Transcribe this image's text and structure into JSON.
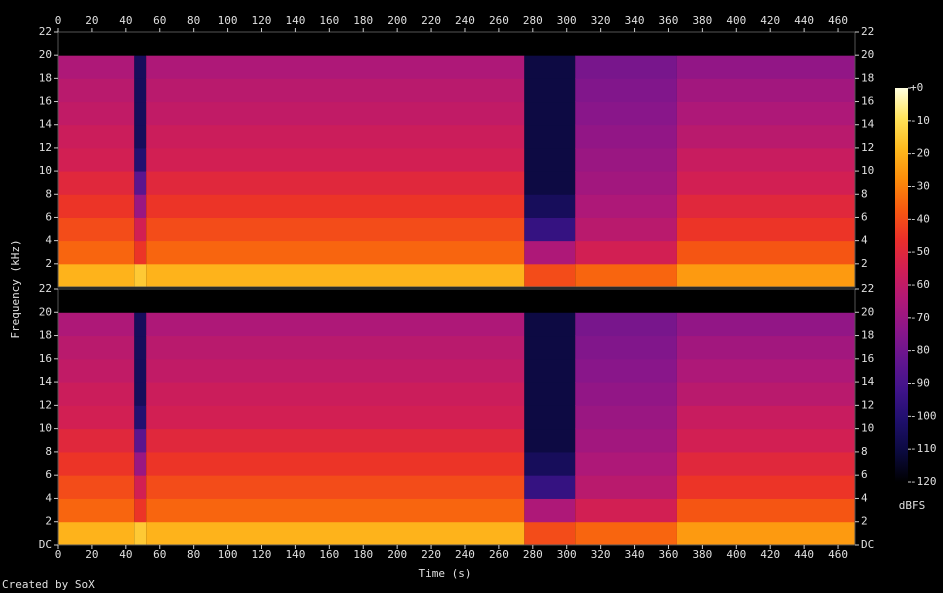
{
  "chart_data": {
    "type": "spectrogram",
    "xlabel": "Time (s)",
    "ylabel": "Frequency (kHz)",
    "footer": "Created by SoX",
    "xlim": [
      0,
      470
    ],
    "xticks": [
      0,
      20,
      40,
      60,
      80,
      100,
      120,
      140,
      160,
      180,
      200,
      220,
      240,
      260,
      280,
      300,
      320,
      340,
      360,
      380,
      400,
      420,
      440,
      460
    ],
    "time_edges": [
      0,
      45,
      52,
      275,
      305,
      365,
      470
    ],
    "freq_edges": [
      0,
      2,
      4,
      6,
      8,
      10,
      12,
      14,
      16,
      18,
      20,
      22
    ],
    "channels": [
      {
        "ylim": [
          0,
          22
        ],
        "yticks": [
          2,
          4,
          6,
          8,
          10,
          12,
          14,
          16,
          18,
          20,
          22
        ],
        "values": [
          [
            -20,
            -35,
            -40,
            -45,
            -50,
            -55,
            -57,
            -60,
            -62,
            -65,
            -120
          ],
          [
            -15,
            -45,
            -55,
            -70,
            -85,
            -100,
            -105,
            -105,
            -105,
            -105,
            -120
          ],
          [
            -20,
            -35,
            -40,
            -45,
            -50,
            -55,
            -57,
            -60,
            -62,
            -65,
            -120
          ],
          [
            -40,
            -65,
            -95,
            -105,
            -110,
            -110,
            -110,
            -110,
            -110,
            -110,
            -120
          ],
          [
            -35,
            -55,
            -62,
            -65,
            -68,
            -70,
            -72,
            -74,
            -76,
            -78,
            -120
          ],
          [
            -25,
            -38,
            -45,
            -50,
            -55,
            -58,
            -62,
            -65,
            -68,
            -72,
            -120
          ]
        ]
      },
      {
        "ylim": [
          0,
          22
        ],
        "yticks": [
          {
            "value": 0,
            "label": "DC"
          },
          2,
          4,
          6,
          8,
          10,
          12,
          14,
          16,
          18,
          20,
          22
        ],
        "values": [
          [
            -20,
            -35,
            -40,
            -45,
            -50,
            -55,
            -57,
            -60,
            -62,
            -65,
            -120
          ],
          [
            -15,
            -45,
            -55,
            -70,
            -85,
            -100,
            -105,
            -105,
            -105,
            -105,
            -120
          ],
          [
            -20,
            -35,
            -40,
            -45,
            -50,
            -55,
            -57,
            -60,
            -62,
            -65,
            -120
          ],
          [
            -40,
            -65,
            -95,
            -105,
            -110,
            -110,
            -110,
            -110,
            -110,
            -110,
            -120
          ],
          [
            -35,
            -55,
            -62,
            -65,
            -68,
            -70,
            -72,
            -74,
            -76,
            -78,
            -120
          ],
          [
            -25,
            -38,
            -45,
            -50,
            -55,
            -58,
            -62,
            -65,
            -68,
            -72,
            -120
          ]
        ]
      }
    ],
    "colorbar": {
      "label": "dBFS",
      "lim": [
        -120,
        0
      ],
      "ticks": [
        {
          "value": 0,
          "label": "+0"
        },
        -10,
        -20,
        -30,
        -40,
        -50,
        -60,
        -70,
        -80,
        -90,
        -100,
        -110,
        -120
      ],
      "colormap": [
        "#000000",
        "#0b0a3f",
        "#1e0f6b",
        "#3e138a",
        "#62158f",
        "#8a168a",
        "#b01877",
        "#d11e55",
        "#ea2f2a",
        "#f75a10",
        "#fc8d0a",
        "#feba1e",
        "#ffe35a",
        "#ffffe0"
      ]
    }
  }
}
